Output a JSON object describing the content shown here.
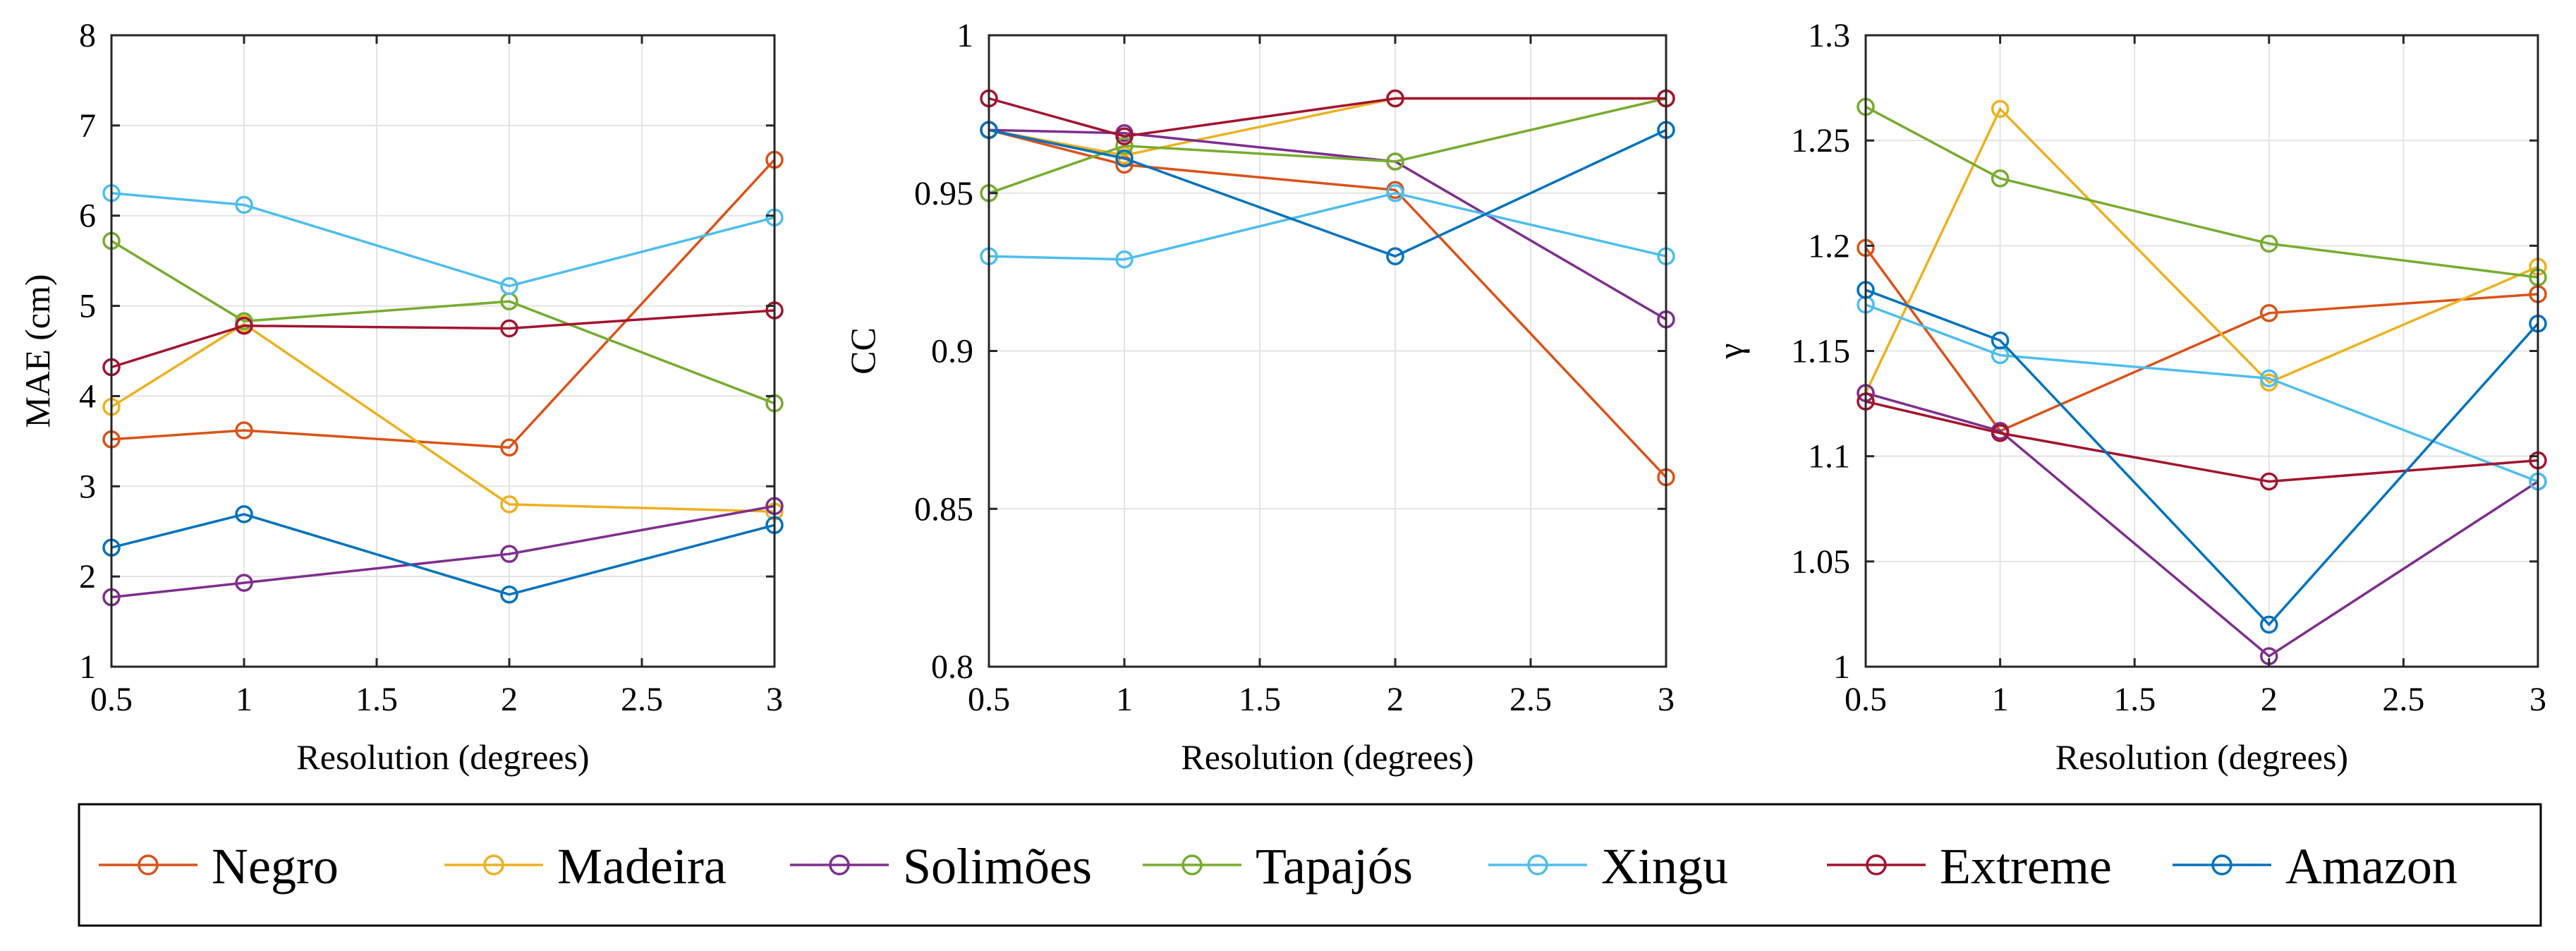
{
  "colors": {
    "Negro": "#D95319",
    "Madeira": "#EDB120",
    "Solimões": "#7E2F8E",
    "Tapajós": "#77AC30",
    "Xingu": "#4DBEEE",
    "Extreme": "#A2142F",
    "Amazon": "#0072BD"
  },
  "legend": {
    "entries": [
      "Negro",
      "Madeira",
      "Solimões",
      "Tapajós",
      "Xingu",
      "Extreme",
      "Amazon"
    ]
  },
  "chart_data": [
    {
      "type": "line",
      "xlabel": "Resolution (degrees)",
      "ylabel": "MAE (cm)",
      "xlim": [
        0.5,
        3
      ],
      "ylim": [
        1,
        8
      ],
      "xticks": [
        0.5,
        1,
        1.5,
        2,
        2.5,
        3
      ],
      "xtick_labels": [
        "0.5",
        "1",
        "1.5",
        "2",
        "2.5",
        "3"
      ],
      "yticks": [
        1,
        2,
        3,
        4,
        5,
        6,
        7,
        8
      ],
      "ytick_labels": [
        "1",
        "2",
        "3",
        "4",
        "5",
        "6",
        "7",
        "8"
      ],
      "grid": true,
      "x": [
        0.5,
        1,
        2,
        3
      ],
      "series": [
        {
          "name": "Negro",
          "values": [
            3.52,
            3.62,
            3.43,
            6.62
          ]
        },
        {
          "name": "Madeira",
          "values": [
            3.88,
            4.8,
            2.8,
            2.72
          ]
        },
        {
          "name": "Solimões",
          "values": [
            1.77,
            1.93,
            2.25,
            2.78
          ]
        },
        {
          "name": "Tapajós",
          "values": [
            5.72,
            4.83,
            5.05,
            3.92
          ]
        },
        {
          "name": "Xingu",
          "values": [
            6.25,
            6.12,
            5.22,
            5.98
          ]
        },
        {
          "name": "Extreme",
          "values": [
            4.32,
            4.78,
            4.75,
            4.95
          ]
        },
        {
          "name": "Amazon",
          "values": [
            2.32,
            2.69,
            1.8,
            2.57
          ]
        }
      ]
    },
    {
      "type": "line",
      "xlabel": "Resolution (degrees)",
      "ylabel": "CC",
      "xlim": [
        0.5,
        3
      ],
      "ylim": [
        0.8,
        1
      ],
      "xticks": [
        0.5,
        1,
        1.5,
        2,
        2.5,
        3
      ],
      "xtick_labels": [
        "0.5",
        "1",
        "1.5",
        "2",
        "2.5",
        "3"
      ],
      "yticks": [
        0.8,
        0.85,
        0.9,
        0.95,
        1
      ],
      "ytick_labels": [
        "0.8",
        "0.85",
        "0.9",
        "0.95",
        "1"
      ],
      "grid": true,
      "x": [
        0.5,
        1,
        2,
        3
      ],
      "series": [
        {
          "name": "Negro",
          "values": [
            0.97,
            0.959,
            0.951,
            0.86
          ]
        },
        {
          "name": "Madeira",
          "values": [
            0.97,
            0.962,
            0.98,
            0.98
          ]
        },
        {
          "name": "Solimões",
          "values": [
            0.97,
            0.969,
            0.96,
            0.91
          ]
        },
        {
          "name": "Tapajós",
          "values": [
            0.95,
            0.965,
            0.96,
            0.98
          ]
        },
        {
          "name": "Xingu",
          "values": [
            0.93,
            0.929,
            0.95,
            0.93
          ]
        },
        {
          "name": "Extreme",
          "values": [
            0.98,
            0.968,
            0.98,
            0.98
          ]
        },
        {
          "name": "Amazon",
          "values": [
            0.97,
            0.961,
            0.93,
            0.97
          ]
        }
      ]
    },
    {
      "type": "line",
      "xlabel": "Resolution (degrees)",
      "ylabel": "γ",
      "xlim": [
        0.5,
        3
      ],
      "ylim": [
        1,
        1.3
      ],
      "xticks": [
        0.5,
        1,
        1.5,
        2,
        2.5,
        3
      ],
      "xtick_labels": [
        "0.5",
        "1",
        "1.5",
        "2",
        "2.5",
        "3"
      ],
      "yticks": [
        1,
        1.05,
        1.1,
        1.15,
        1.2,
        1.25,
        1.3
      ],
      "ytick_labels": [
        "1",
        "1.05",
        "1.1",
        "1.15",
        "1.2",
        "1.25",
        "1.3"
      ],
      "grid": true,
      "x": [
        0.5,
        1,
        2,
        3
      ],
      "series": [
        {
          "name": "Negro",
          "values": [
            1.199,
            1.112,
            1.168,
            1.177
          ]
        },
        {
          "name": "Madeira",
          "values": [
            1.13,
            1.265,
            1.135,
            1.19
          ]
        },
        {
          "name": "Solimões",
          "values": [
            1.13,
            1.112,
            1.005,
            1.088
          ]
        },
        {
          "name": "Tapajós",
          "values": [
            1.266,
            1.232,
            1.201,
            1.185
          ]
        },
        {
          "name": "Xingu",
          "values": [
            1.172,
            1.148,
            1.137,
            1.088
          ]
        },
        {
          "name": "Extreme",
          "values": [
            1.126,
            1.111,
            1.088,
            1.098
          ]
        },
        {
          "name": "Amazon",
          "values": [
            1.179,
            1.155,
            1.02,
            1.163
          ]
        }
      ]
    }
  ]
}
